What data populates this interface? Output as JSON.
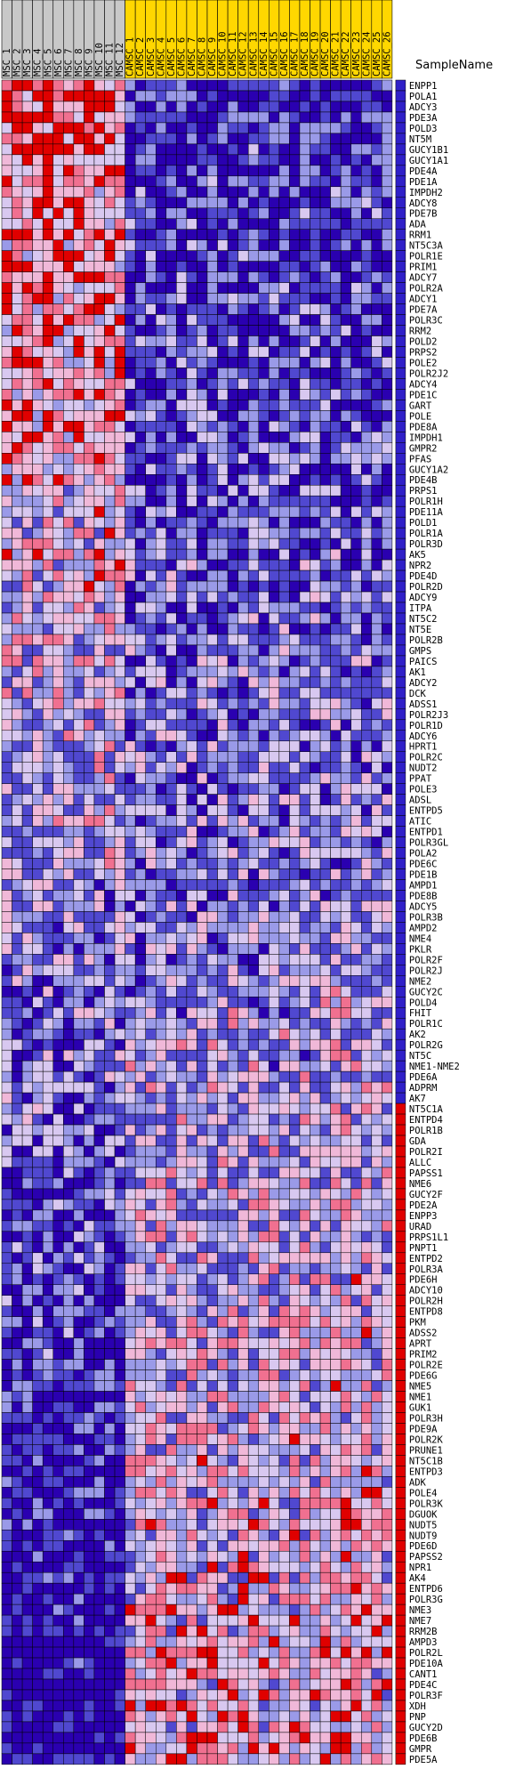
{
  "chart_data": {
    "type": "heatmap",
    "header_label": "SampleName",
    "columns": [
      "MSC_1",
      "MSC_2",
      "MSC_3",
      "MSC_4",
      "MSC_5",
      "MSC_6",
      "MSC_7",
      "MSC_8",
      "MSC_9",
      "MSC_10",
      "MSC_11",
      "MSC_12",
      "CAMSC_1",
      "CAMSC_2",
      "CAMSC_3",
      "CAMSC_4",
      "CAMSC_5",
      "CAMSC_6",
      "CAMSC_7",
      "CAMSC_8",
      "CAMSC_9",
      "CAMSC_10",
      "CAMSC_11",
      "CAMSC_12",
      "CAMSC_13",
      "CAMSC_14",
      "CAMSC_15",
      "CAMSC_16",
      "CAMSC_17",
      "CAMSC_18",
      "CAMSC_19",
      "CAMSC_20",
      "CAMSC_21",
      "CAMSC_22",
      "CAMSC_23",
      "CAMSC_24",
      "CAMSC_25",
      "CAMSC_26"
    ],
    "column_groups": [
      {
        "name": "MSC",
        "count": 12,
        "color": "#c8c8c8"
      },
      {
        "name": "CAMSC",
        "count": 26,
        "color": "#ffd700"
      }
    ],
    "rows": [
      "ENPP1",
      "POLA1",
      "ADCY3",
      "PDE3A",
      "POLD3",
      "NT5M",
      "GUCY1B1",
      "GUCY1A1",
      "PDE4A",
      "PDE1A",
      "IMPDH2",
      "ADCY8",
      "PDE7B",
      "ADA",
      "RRM1",
      "NT5C3A",
      "POLR1E",
      "PRIM1",
      "ADCY7",
      "POLR2A",
      "ADCY1",
      "PDE7A",
      "POLR3C",
      "RRM2",
      "POLD2",
      "PRPS2",
      "POLE2",
      "POLR2J2",
      "ADCY4",
      "PDE1C",
      "GART",
      "POLE",
      "PDE8A",
      "IMPDH1",
      "GMPR2",
      "PFAS",
      "GUCY1A2",
      "PDE4B",
      "PRPS1",
      "POLR1H",
      "PDE11A",
      "POLD1",
      "POLR1A",
      "POLR3D",
      "AK5",
      "NPR2",
      "PDE4D",
      "POLR2D",
      "ADCY9",
      "ITPA",
      "NT5C2",
      "NT5E",
      "POLR2B",
      "GMPS",
      "PAICS",
      "AK1",
      "ADCY2",
      "DCK",
      "ADSS1",
      "POLR2J3",
      "POLR1D",
      "ADCY6",
      "HPRT1",
      "POLR2C",
      "NUDT2",
      "PPAT",
      "POLE3",
      "ADSL",
      "ENTPD5",
      "ATIC",
      "ENTPD1",
      "POLR3GL",
      "POLA2",
      "PDE6C",
      "PDE1B",
      "AMPD1",
      "PDE8B",
      "ADCY5",
      "POLR3B",
      "AMPD2",
      "NME4",
      "PKLR",
      "POLR2F",
      "POLR2J",
      "NME2",
      "GUCY2C",
      "POLD4",
      "FHIT",
      "POLR1C",
      "AK2",
      "POLR2G",
      "NT5C",
      "NME1-NME2",
      "PDE6A",
      "ADPRM",
      "AK7",
      "NT5C1A",
      "ENTPD4",
      "POLR1B",
      "GDA",
      "POLR2I",
      "ALLC",
      "PAPSS1",
      "NME6",
      "GUCY2F",
      "PDE2A",
      "ENPP3",
      "URAD",
      "PRPS1L1",
      "PNPT1",
      "ENTPD2",
      "POLR3A",
      "PDE6H",
      "ADCY10",
      "POLR2H",
      "ENTPD8",
      "PKM",
      "ADSS2",
      "APRT",
      "PRIM2",
      "POLR2E",
      "PDE6G",
      "NME5",
      "NME1",
      "GUK1",
      "POLR3H",
      "PDE9A",
      "POLR2K",
      "PRUNE1",
      "NT5C1B",
      "ENTPD3",
      "ADK",
      "POLE4",
      "POLR3K",
      "DGUOK",
      "NUDT5",
      "NUDT9",
      "PDE6D",
      "PAPSS2",
      "NPR1",
      "AK4",
      "ENTPD6",
      "POLR3G",
      "NME3",
      "NME7",
      "RRM2B",
      "AMPD3",
      "POLR2L",
      "PDE10A",
      "CANT1",
      "PDE4C",
      "POLR3F",
      "XDH",
      "PNP",
      "GUCY2D",
      "PDE6B",
      "GMPR",
      "PDE5A"
    ],
    "color_scale": {
      "low": "#2000a8",
      "mid_low": "#8c8ce6",
      "mid": "#e6c8f0",
      "mid_high": "#f0a0c8",
      "high": "#e00000"
    },
    "values_scale": "relative expression, 0 (blue) to 1 (red)"
  }
}
